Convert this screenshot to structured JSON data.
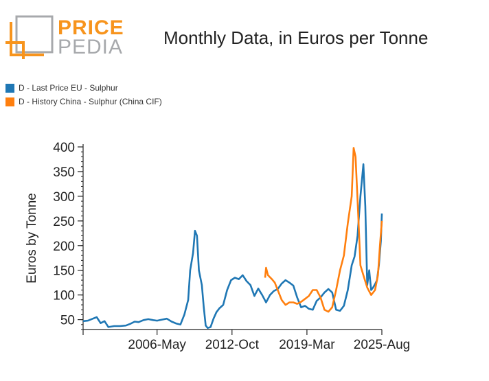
{
  "logo": {
    "line1": "PRICE",
    "line2": "PEDIA",
    "color_orange": "#f7941d",
    "color_gray": "#a7a9ac"
  },
  "chart_data": {
    "type": "line",
    "title": "Monthly Data, in Euros per Tonne",
    "ylabel": "Euros by Tonne",
    "xlabel": "",
    "ylim": [
      30,
      400
    ],
    "yticks": [
      50,
      100,
      150,
      200,
      250,
      300,
      350,
      400
    ],
    "xlim": [
      "2000-01",
      "2025-08"
    ],
    "xticks": [
      "2006-May",
      "2012-Oct",
      "2019-Mar",
      "2025-Aug"
    ],
    "legend_position": "top-left",
    "grid": false,
    "series": [
      {
        "name": "D - Last Price EU - Sulphur",
        "color": "#1f77b4",
        "points": [
          [
            "2000-01",
            47
          ],
          [
            "2000-06",
            48
          ],
          [
            "2000-11",
            52
          ],
          [
            "2001-03",
            55
          ],
          [
            "2001-07",
            43
          ],
          [
            "2001-11",
            47
          ],
          [
            "2002-03",
            35
          ],
          [
            "2002-09",
            37
          ],
          [
            "2003-03",
            37
          ],
          [
            "2003-09",
            38
          ],
          [
            "2004-02",
            42
          ],
          [
            "2004-06",
            46
          ],
          [
            "2004-10",
            45
          ],
          [
            "2005-03",
            49
          ],
          [
            "2005-08",
            51
          ],
          [
            "2006-01",
            49
          ],
          [
            "2006-05",
            48
          ],
          [
            "2006-10",
            50
          ],
          [
            "2007-03",
            52
          ],
          [
            "2007-08",
            46
          ],
          [
            "2008-01",
            42
          ],
          [
            "2008-05",
            40
          ],
          [
            "2008-09",
            60
          ],
          [
            "2009-01",
            90
          ],
          [
            "2009-03",
            150
          ],
          [
            "2009-06",
            185
          ],
          [
            "2009-08",
            230
          ],
          [
            "2009-10",
            220
          ],
          [
            "2009-12",
            150
          ],
          [
            "2010-03",
            120
          ],
          [
            "2010-05",
            75
          ],
          [
            "2010-07",
            38
          ],
          [
            "2010-09",
            33
          ],
          [
            "2010-12",
            35
          ],
          [
            "2011-03",
            52
          ],
          [
            "2011-06",
            65
          ],
          [
            "2011-09",
            73
          ],
          [
            "2012-01",
            80
          ],
          [
            "2012-05",
            110
          ],
          [
            "2012-09",
            130
          ],
          [
            "2013-01",
            135
          ],
          [
            "2013-05",
            132
          ],
          [
            "2013-09",
            140
          ],
          [
            "2014-01",
            128
          ],
          [
            "2014-05",
            120
          ],
          [
            "2014-09",
            98
          ],
          [
            "2015-01",
            113
          ],
          [
            "2015-05",
            100
          ],
          [
            "2015-09",
            85
          ],
          [
            "2016-01",
            100
          ],
          [
            "2016-05",
            108
          ],
          [
            "2016-09",
            112
          ],
          [
            "2017-01",
            123
          ],
          [
            "2017-05",
            130
          ],
          [
            "2017-09",
            125
          ],
          [
            "2018-01",
            119
          ],
          [
            "2018-05",
            95
          ],
          [
            "2018-09",
            75
          ],
          [
            "2019-01",
            78
          ],
          [
            "2019-05",
            72
          ],
          [
            "2019-09",
            70
          ],
          [
            "2020-01",
            88
          ],
          [
            "2020-05",
            95
          ],
          [
            "2020-09",
            105
          ],
          [
            "2021-01",
            112
          ],
          [
            "2021-05",
            105
          ],
          [
            "2021-09",
            70
          ],
          [
            "2022-01",
            68
          ],
          [
            "2022-05",
            78
          ],
          [
            "2022-09",
            110
          ],
          [
            "2023-01",
            160
          ],
          [
            "2023-04",
            178
          ],
          [
            "2023-07",
            220
          ],
          [
            "2023-10",
            300
          ],
          [
            "2024-01",
            365
          ],
          [
            "2024-03",
            280
          ],
          [
            "2024-05",
            120
          ],
          [
            "2024-07",
            150
          ],
          [
            "2024-09",
            110
          ],
          [
            "2024-11",
            115
          ],
          [
            "2025-01",
            122
          ],
          [
            "2025-03",
            130
          ],
          [
            "2025-05",
            160
          ],
          [
            "2025-07",
            210
          ],
          [
            "2025-08",
            265
          ]
        ]
      },
      {
        "name": "D - History China - Sulphur (China CIF)",
        "color": "#ff7f0e",
        "points": [
          [
            "2015-08",
            135
          ],
          [
            "2015-09",
            155
          ],
          [
            "2015-11",
            140
          ],
          [
            "2016-03",
            132
          ],
          [
            "2016-06",
            125
          ],
          [
            "2016-09",
            110
          ],
          [
            "2017-01",
            90
          ],
          [
            "2017-05",
            80
          ],
          [
            "2017-09",
            85
          ],
          [
            "2018-01",
            85
          ],
          [
            "2018-05",
            82
          ],
          [
            "2018-09",
            86
          ],
          [
            "2019-01",
            92
          ],
          [
            "2019-05",
            98
          ],
          [
            "2019-09",
            110
          ],
          [
            "2020-01",
            110
          ],
          [
            "2020-05",
            95
          ],
          [
            "2020-09",
            70
          ],
          [
            "2021-01",
            66
          ],
          [
            "2021-05",
            75
          ],
          [
            "2021-09",
            110
          ],
          [
            "2022-01",
            150
          ],
          [
            "2022-05",
            180
          ],
          [
            "2022-09",
            245
          ],
          [
            "2023-01",
            300
          ],
          [
            "2023-03",
            398
          ],
          [
            "2023-05",
            380
          ],
          [
            "2023-08",
            250
          ],
          [
            "2023-10",
            160
          ],
          [
            "2024-01",
            140
          ],
          [
            "2024-05",
            115
          ],
          [
            "2024-09",
            100
          ],
          [
            "2025-01",
            110
          ],
          [
            "2025-04",
            140
          ],
          [
            "2025-06",
            200
          ],
          [
            "2025-08",
            250
          ]
        ]
      }
    ]
  }
}
